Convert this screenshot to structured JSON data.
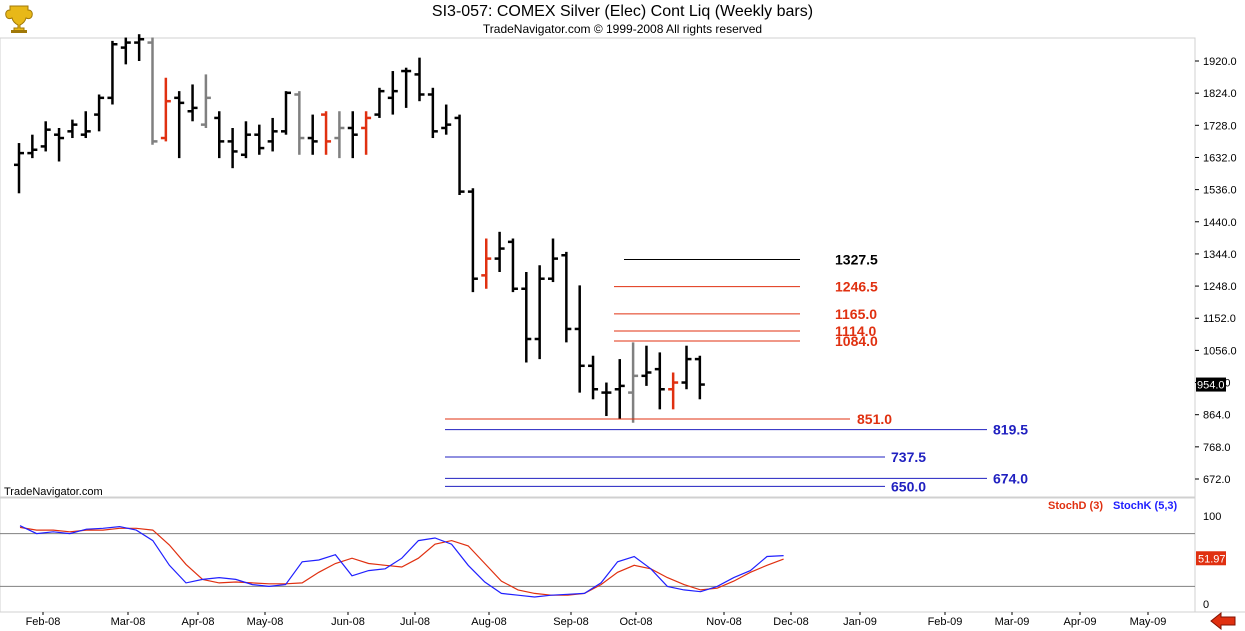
{
  "header": {
    "title": "SI3-057:  COMEX Silver (Elec) Cont Liq  (Weekly bars)",
    "subtitle": "TradeNavigator.com © 1999-2008 All rights reserved",
    "watermark": "TradeNavigator.com"
  },
  "icons": {
    "logo": "trophy-logo-icon",
    "nav": "left-arrow-icon"
  },
  "colors": {
    "bar_up": "#000000",
    "bar_red": "#e03010",
    "bar_gray": "#808080",
    "level_red": "#e03010",
    "level_blue": "#2020c0",
    "stoch_d": "#e03010",
    "stoch_k": "#2020ff"
  },
  "chart_data": [
    {
      "type": "ohlc",
      "title": "SI3-057:  COMEX Silver (Elec) Cont Liq  (Weekly bars)",
      "ylim": [
        610,
        2010
      ],
      "y_ticks": [
        672.0,
        768.0,
        864.0,
        960.0,
        1056.0,
        1152.0,
        1248.0,
        1344.0,
        1440.0,
        1536.0,
        1632.0,
        1728.0,
        1824.0,
        1920.0
      ],
      "y_tick_labels": [
        "672.0",
        "768.0",
        "864.0",
        "960.0",
        "1056.0",
        "1152.0",
        "1248.0",
        "1344.0",
        "1440.0",
        "1536.0",
        "1632.0",
        "1728.0",
        "1824.0",
        "1920.0"
      ],
      "last_price": {
        "value": 954.0,
        "label": "954.0"
      },
      "x_labels": [
        "Feb-08",
        "Mar-08",
        "Apr-08",
        "May-08",
        "Jun-08",
        "Jul-08",
        "Aug-08",
        "Sep-08",
        "Oct-08",
        "Nov-08",
        "Dec-08",
        "Jan-09",
        "Feb-09",
        "Mar-09",
        "Apr-09",
        "May-09"
      ],
      "bars": [
        {
          "o": 1610,
          "h": 1675,
          "l": 1525,
          "c": 1645,
          "col": "k"
        },
        {
          "o": 1645,
          "h": 1700,
          "l": 1630,
          "c": 1655,
          "col": "k"
        },
        {
          "o": 1665,
          "h": 1740,
          "l": 1650,
          "c": 1715,
          "col": "k"
        },
        {
          "o": 1700,
          "h": 1720,
          "l": 1620,
          "c": 1690,
          "col": "k"
        },
        {
          "o": 1710,
          "h": 1745,
          "l": 1690,
          "c": 1730,
          "col": "k"
        },
        {
          "o": 1700,
          "h": 1770,
          "l": 1690,
          "c": 1710,
          "col": "k"
        },
        {
          "o": 1760,
          "h": 1820,
          "l": 1710,
          "c": 1810,
          "col": "k"
        },
        {
          "o": 1810,
          "h": 1980,
          "l": 1790,
          "c": 1970,
          "col": "k"
        },
        {
          "o": 1960,
          "h": 1990,
          "l": 1910,
          "c": 1975,
          "col": "k"
        },
        {
          "o": 1975,
          "h": 2000,
          "l": 1920,
          "c": 1985,
          "col": "k"
        },
        {
          "o": 1975,
          "h": 1990,
          "l": 1670,
          "c": 1680,
          "col": "g"
        },
        {
          "o": 1690,
          "h": 1870,
          "l": 1680,
          "c": 1800,
          "col": "r"
        },
        {
          "o": 1810,
          "h": 1830,
          "l": 1630,
          "c": 1795,
          "col": "k"
        },
        {
          "o": 1770,
          "h": 1850,
          "l": 1740,
          "c": 1780,
          "col": "k"
        },
        {
          "o": 1730,
          "h": 1880,
          "l": 1720,
          "c": 1810,
          "col": "g"
        },
        {
          "o": 1750,
          "h": 1770,
          "l": 1630,
          "c": 1680,
          "col": "k"
        },
        {
          "o": 1680,
          "h": 1720,
          "l": 1600,
          "c": 1650,
          "col": "k"
        },
        {
          "o": 1640,
          "h": 1740,
          "l": 1630,
          "c": 1700,
          "col": "k"
        },
        {
          "o": 1700,
          "h": 1730,
          "l": 1640,
          "c": 1660,
          "col": "k"
        },
        {
          "o": 1680,
          "h": 1750,
          "l": 1650,
          "c": 1710,
          "col": "k"
        },
        {
          "o": 1710,
          "h": 1830,
          "l": 1700,
          "c": 1825,
          "col": "k"
        },
        {
          "o": 1820,
          "h": 1830,
          "l": 1640,
          "c": 1690,
          "col": "g"
        },
        {
          "o": 1690,
          "h": 1760,
          "l": 1640,
          "c": 1680,
          "col": "k"
        },
        {
          "o": 1760,
          "h": 1770,
          "l": 1640,
          "c": 1680,
          "col": "r"
        },
        {
          "o": 1690,
          "h": 1770,
          "l": 1630,
          "c": 1720,
          "col": "g"
        },
        {
          "o": 1720,
          "h": 1770,
          "l": 1630,
          "c": 1700,
          "col": "k"
        },
        {
          "o": 1720,
          "h": 1770,
          "l": 1640,
          "c": 1750,
          "col": "r"
        },
        {
          "o": 1760,
          "h": 1840,
          "l": 1750,
          "c": 1830,
          "col": "k"
        },
        {
          "o": 1810,
          "h": 1890,
          "l": 1760,
          "c": 1830,
          "col": "k"
        },
        {
          "o": 1890,
          "h": 1900,
          "l": 1780,
          "c": 1890,
          "col": "k"
        },
        {
          "o": 1880,
          "h": 1930,
          "l": 1800,
          "c": 1820,
          "col": "k"
        },
        {
          "o": 1820,
          "h": 1840,
          "l": 1690,
          "c": 1710,
          "col": "k"
        },
        {
          "o": 1720,
          "h": 1790,
          "l": 1700,
          "c": 1730,
          "col": "k"
        },
        {
          "o": 1750,
          "h": 1760,
          "l": 1520,
          "c": 1530,
          "col": "k"
        },
        {
          "o": 1530,
          "h": 1540,
          "l": 1230,
          "c": 1270,
          "col": "k"
        },
        {
          "o": 1280,
          "h": 1390,
          "l": 1240,
          "c": 1330,
          "col": "r"
        },
        {
          "o": 1330,
          "h": 1410,
          "l": 1290,
          "c": 1360,
          "col": "k"
        },
        {
          "o": 1380,
          "h": 1390,
          "l": 1230,
          "c": 1240,
          "col": "k"
        },
        {
          "o": 1240,
          "h": 1290,
          "l": 1020,
          "c": 1090,
          "col": "k"
        },
        {
          "o": 1090,
          "h": 1310,
          "l": 1030,
          "c": 1270,
          "col": "k"
        },
        {
          "o": 1270,
          "h": 1390,
          "l": 1260,
          "c": 1330,
          "col": "k"
        },
        {
          "o": 1340,
          "h": 1350,
          "l": 1080,
          "c": 1120,
          "col": "k"
        },
        {
          "o": 1120,
          "h": 1250,
          "l": 930,
          "c": 1010,
          "col": "k"
        },
        {
          "o": 1010,
          "h": 1040,
          "l": 910,
          "c": 940,
          "col": "k"
        },
        {
          "o": 930,
          "h": 960,
          "l": 860,
          "c": 930,
          "col": "k"
        },
        {
          "o": 940,
          "h": 1030,
          "l": 850,
          "c": 950,
          "col": "k"
        },
        {
          "o": 930,
          "h": 1080,
          "l": 840,
          "c": 980,
          "col": "g"
        },
        {
          "o": 980,
          "h": 1070,
          "l": 950,
          "c": 990,
          "col": "k"
        },
        {
          "o": 1000,
          "h": 1050,
          "l": 880,
          "c": 940,
          "col": "k"
        },
        {
          "o": 940,
          "h": 990,
          "l": 880,
          "c": 960,
          "col": "r"
        },
        {
          "o": 960,
          "h": 1070,
          "l": 940,
          "c": 1030,
          "col": "k"
        },
        {
          "o": 1030,
          "h": 1040,
          "l": 910,
          "c": 954,
          "col": "k"
        }
      ],
      "levels": [
        {
          "value": 1327.5,
          "label": "1327.5",
          "color": "#000000"
        },
        {
          "value": 1246.5,
          "label": "1246.5",
          "color": "#e03010"
        },
        {
          "value": 1165.0,
          "label": "1165.0",
          "color": "#e03010"
        },
        {
          "value": 1114.0,
          "label": "1114.0",
          "color": "#e03010"
        },
        {
          "value": 1084.0,
          "label": "1084.0",
          "color": "#e03010"
        },
        {
          "value": 851.0,
          "label": "851.0",
          "color": "#e03010"
        },
        {
          "value": 819.5,
          "label": "819.5",
          "color": "#2020c0"
        },
        {
          "value": 737.5,
          "label": "737.5",
          "color": "#2020c0"
        },
        {
          "value": 674.0,
          "label": "674.0",
          "color": "#2020c0"
        },
        {
          "value": 650.0,
          "label": "650.0",
          "color": "#2020c0"
        }
      ]
    },
    {
      "type": "line",
      "ylim": [
        -5,
        115
      ],
      "y_ticks": [
        0,
        100
      ],
      "y_tick_labels": [
        "0",
        "100"
      ],
      "reference_lines": [
        20,
        80
      ],
      "last_value": {
        "value": 51.97,
        "label": "51.97"
      },
      "series": [
        {
          "name": "StochD (3)",
          "color": "#e03010",
          "values": [
            87,
            84,
            84,
            82,
            84,
            84,
            86,
            86,
            84,
            67,
            45,
            28,
            24,
            25,
            24,
            23,
            23,
            24,
            36,
            46,
            52,
            46,
            44,
            42,
            52,
            68,
            72,
            66,
            46,
            26,
            16,
            12,
            10,
            10,
            12,
            22,
            36,
            44,
            40,
            30,
            22,
            16,
            18,
            26,
            36,
            44,
            51
          ]
        },
        {
          "name": "StochK (5,3)",
          "color": "#2020ff",
          "values": [
            89,
            80,
            82,
            80,
            85,
            86,
            88,
            84,
            72,
            44,
            24,
            28,
            30,
            28,
            22,
            20,
            22,
            48,
            50,
            56,
            32,
            38,
            40,
            52,
            72,
            75,
            68,
            44,
            25,
            12,
            10,
            8,
            10,
            11,
            12,
            24,
            48,
            54,
            40,
            20,
            16,
            14,
            20,
            30,
            38,
            54,
            55
          ]
        }
      ]
    }
  ]
}
